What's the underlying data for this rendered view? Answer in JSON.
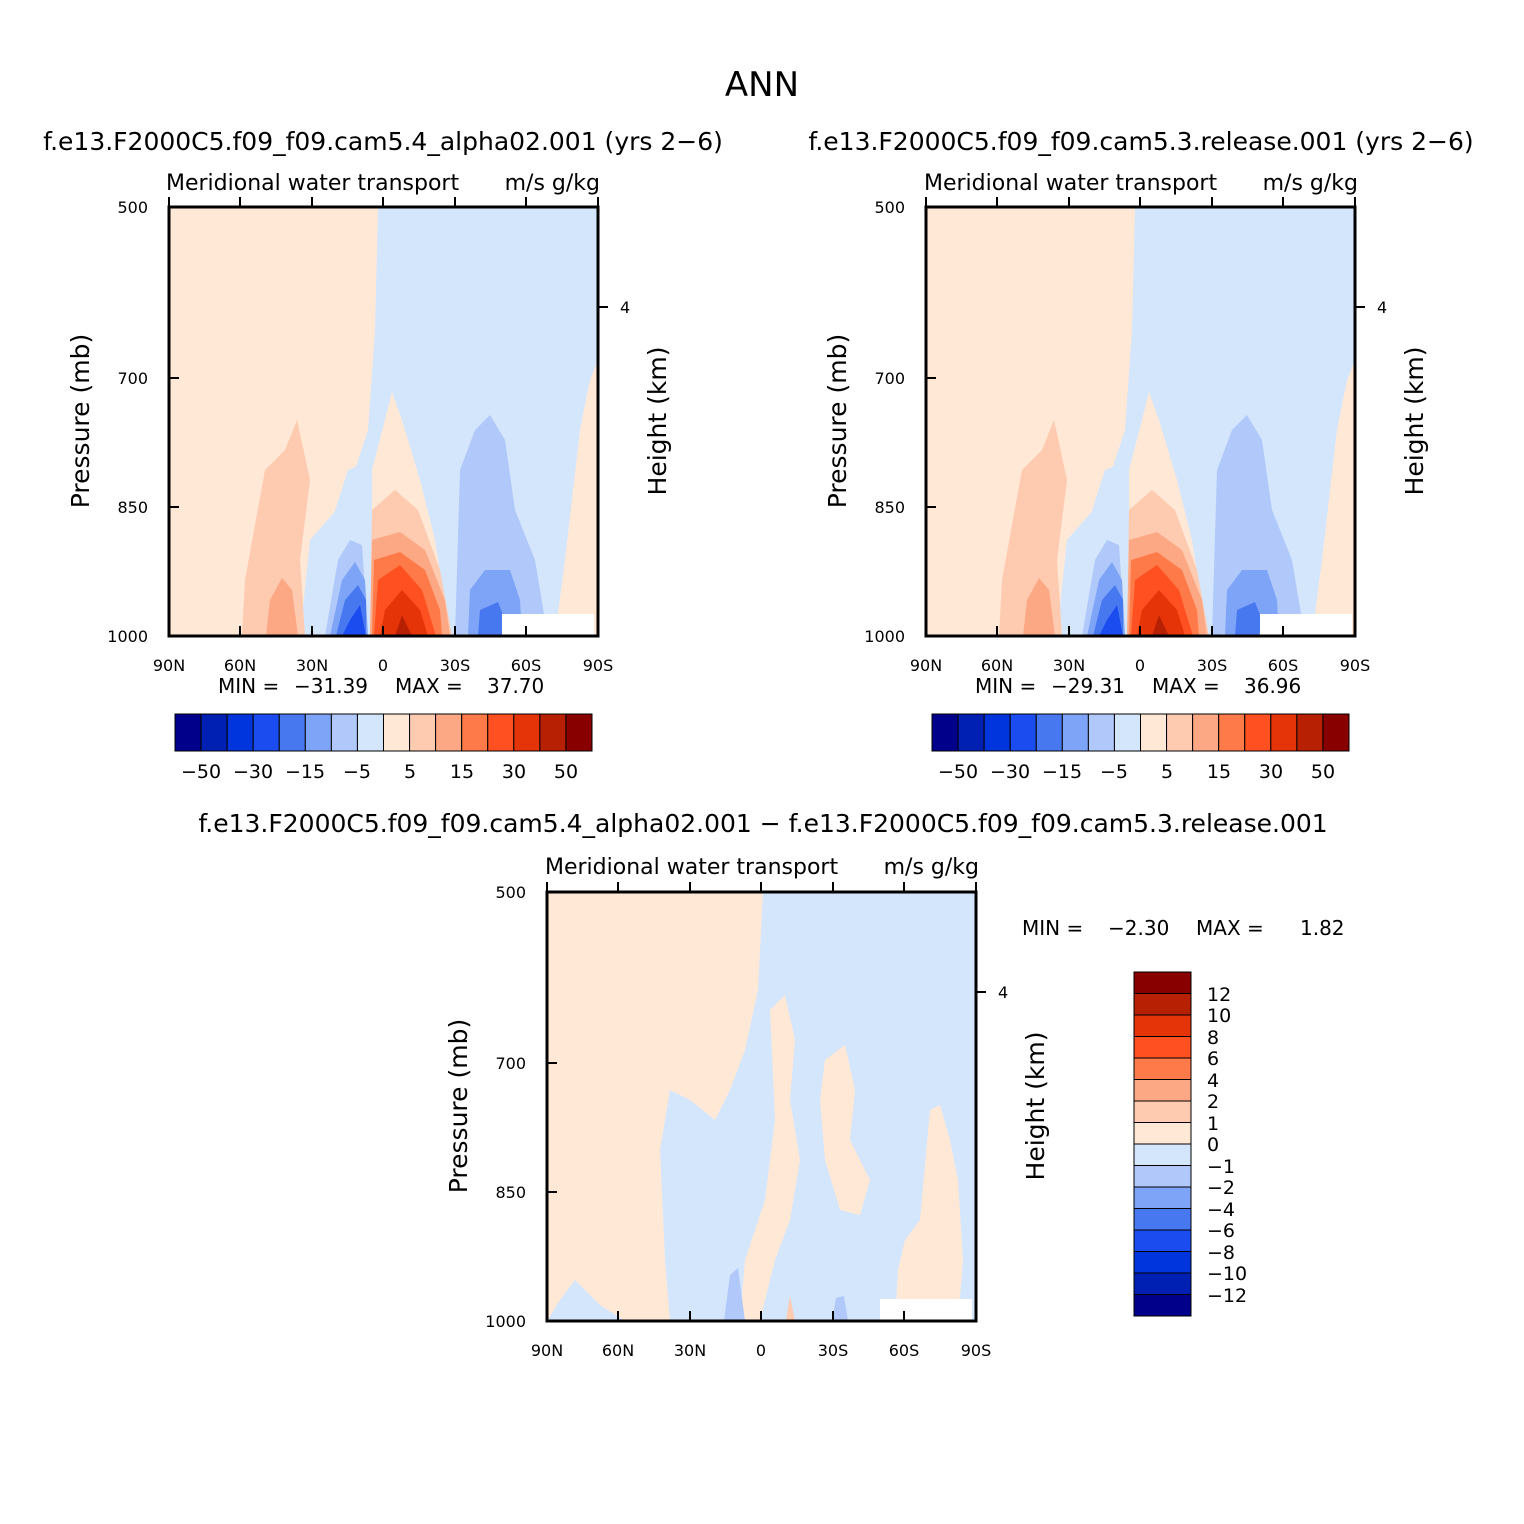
{
  "page_title": "ANN",
  "colors": {
    "blues": [
      "#00008b",
      "#0020b4",
      "#0034dc",
      "#1a4cf0",
      "#4878f0",
      "#7ea4f8",
      "#b0c8fa",
      "#d4e6fc"
    ],
    "reds": [
      "#ffe8d6",
      "#fecab0",
      "#fda884",
      "#fe7a48",
      "#fe5020",
      "#e43408",
      "#b82004",
      "#880000"
    ]
  },
  "chart_data": [
    {
      "type": "contour",
      "id": "model",
      "header": "f.e13.F2000C5.f09_f09.cam5.4_alpha02.001 (yrs 2−6)",
      "title": "Meridional water transport",
      "units": "m/s g/kg",
      "ylabel": "Pressure (mb)",
      "ylabel_right": "Height (km)",
      "x_ticks": [
        "90N",
        "60N",
        "30N",
        "0",
        "30S",
        "60S",
        "90S"
      ],
      "y_ticks": [
        "500",
        "700",
        "850",
        "1000"
      ],
      "y_right_ticks": [
        "4"
      ],
      "ylim": [
        1000,
        500
      ],
      "min_label": "MIN =",
      "min": "−31.39",
      "max_label": "MAX =",
      "max": "37.70",
      "colorbar_labels": [
        "−50",
        "−30",
        "−15",
        "−5",
        "5",
        "15",
        "30",
        "50"
      ]
    },
    {
      "type": "contour",
      "id": "control",
      "header": "f.e13.F2000C5.f09_f09.cam5.3.release.001 (yrs 2−6)",
      "title": "Meridional water transport",
      "units": "m/s g/kg",
      "ylabel": "Pressure (mb)",
      "ylabel_right": "Height (km)",
      "x_ticks": [
        "90N",
        "60N",
        "30N",
        "0",
        "30S",
        "60S",
        "90S"
      ],
      "y_ticks": [
        "500",
        "700",
        "850",
        "1000"
      ],
      "y_right_ticks": [
        "4"
      ],
      "ylim": [
        1000,
        500
      ],
      "min_label": "MIN =",
      "min": "−29.31",
      "max_label": "MAX =",
      "max": "36.96",
      "colorbar_labels": [
        "−50",
        "−30",
        "−15",
        "−5",
        "5",
        "15",
        "30",
        "50"
      ]
    },
    {
      "type": "contour",
      "id": "difference",
      "header": "f.e13.F2000C5.f09_f09.cam5.4_alpha02.001 − f.e13.F2000C5.f09_f09.cam5.3.release.001",
      "title": "Meridional water transport",
      "units": "m/s g/kg",
      "ylabel": "Pressure (mb)",
      "ylabel_right": "Height (km)",
      "x_ticks": [
        "90N",
        "60N",
        "30N",
        "0",
        "30S",
        "60S",
        "90S"
      ],
      "y_ticks": [
        "500",
        "700",
        "850",
        "1000"
      ],
      "y_right_ticks": [
        "4"
      ],
      "ylim": [
        1000,
        500
      ],
      "min_label": "MIN =",
      "min": "−2.30",
      "max_label": "MAX =",
      "max": "1.82",
      "colorbar_labels": [
        "12",
        "10",
        "8",
        "6",
        "4",
        "2",
        "1",
        "0",
        "−1",
        "−2",
        "−4",
        "−6",
        "−8",
        "−10",
        "−12"
      ]
    }
  ]
}
